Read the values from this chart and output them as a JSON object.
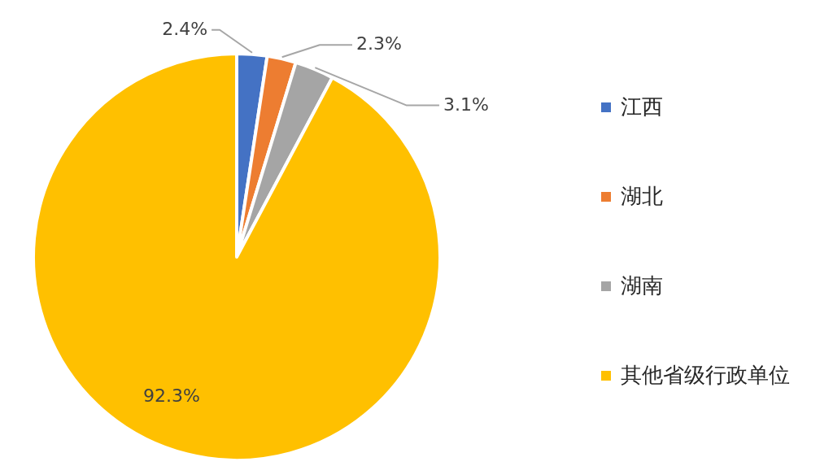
{
  "chart_data": {
    "type": "pie",
    "categories": [
      "江西",
      "湖北",
      "湖南",
      "其他省级行政单位"
    ],
    "values": [
      2.4,
      2.3,
      3.1,
      92.3
    ],
    "colors": [
      "#4472c4",
      "#ed7d31",
      "#a5a5a5",
      "#ffc000"
    ],
    "value_labels": [
      "2.4%",
      "2.3%",
      "3.1%",
      "92.3%"
    ],
    "legend": "right"
  }
}
